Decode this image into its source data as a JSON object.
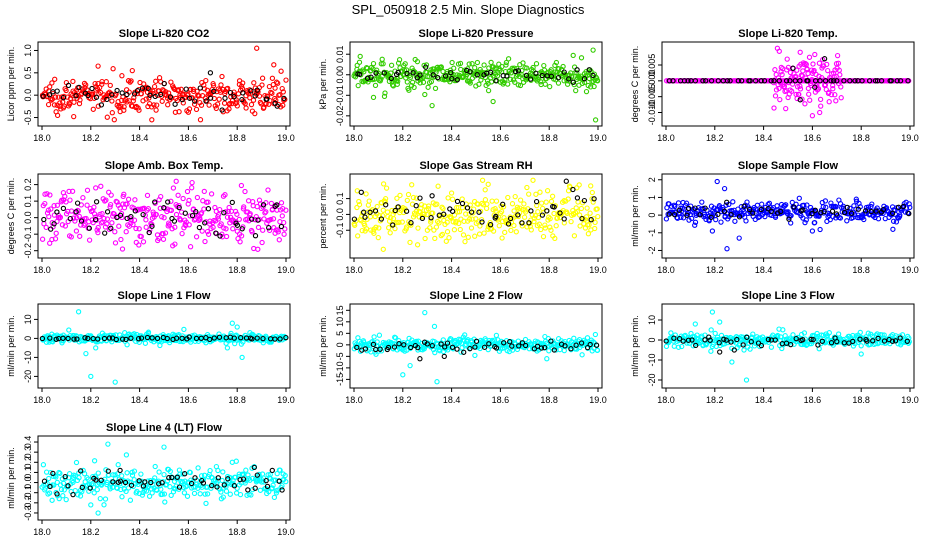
{
  "figure": {
    "title": "SPL_050918  2.5 Min. Slope Diagnostics"
  },
  "colors": {
    "red": "#ff0000",
    "green": "#33cc00",
    "magenta": "#ff00ff",
    "yellow": "#ffff00",
    "blue": "#0000ff",
    "cyan": "#00ffff",
    "black": "#000000"
  },
  "chart_data": [
    {
      "type": "scatter",
      "title": "Slope Li-820 CO2",
      "ylabel": "Licor ppm per min.",
      "xlabel": "",
      "xlim": [
        18.0,
        19.0
      ],
      "ylim": [
        -0.6,
        1.1
      ],
      "xticks": [
        "18.0",
        "18.2",
        "18.4",
        "18.6",
        "18.8",
        "19.0"
      ],
      "yticks": [
        "-0.5",
        "0.0",
        "0.5",
        "1.0"
      ],
      "series": [
        {
          "color": "red",
          "spread": 0.18,
          "offset": 0.0,
          "n": 330,
          "outliers": [
            [
              18.23,
              0.65
            ],
            [
              18.37,
              0.55
            ],
            [
              18.88,
              1.05
            ],
            [
              18.45,
              -0.55
            ],
            [
              18.13,
              -0.48
            ],
            [
              18.95,
              0.68
            ]
          ]
        },
        {
          "color": "black",
          "spread": 0.12,
          "offset": 0.0,
          "n": 50,
          "outliers": [
            [
              18.69,
              0.5
            ]
          ]
        }
      ]
    },
    {
      "type": "scatter",
      "title": "Slope Li-820 Pressure",
      "ylabel": "kPa per min.",
      "xlabel": "",
      "xlim": [
        18.0,
        19.0
      ],
      "ylim": [
        -0.023,
        0.014
      ],
      "xticks": [
        "18.0",
        "18.2",
        "18.4",
        "18.6",
        "18.8",
        "19.0"
      ],
      "yticks": [
        "-0.02",
        "-0.01",
        "0.00",
        "0.01"
      ],
      "series": [
        {
          "color": "green",
          "spread": 0.0035,
          "offset": 0.0,
          "n": 380,
          "outliers": [
            [
              18.32,
              -0.015
            ],
            [
              18.08,
              -0.011
            ],
            [
              18.99,
              -0.022
            ],
            [
              18.98,
              0.012
            ],
            [
              18.57,
              -0.013
            ]
          ]
        },
        {
          "color": "black",
          "spread": 0.0015,
          "offset": 0.0,
          "n": 45,
          "outliers": []
        }
      ]
    },
    {
      "type": "scatter",
      "title": "Slope Li-820 Temp.",
      "ylabel": "degrees C per min.",
      "xlabel": "",
      "xlim": [
        18.0,
        19.0
      ],
      "ylim": [
        -0.013,
        0.011
      ],
      "xticks": [
        "18.0",
        "18.2",
        "18.4",
        "18.6",
        "18.8",
        "19.0"
      ],
      "yticks": [
        "-0.010",
        "-0.005",
        "0.000",
        "0.005"
      ],
      "series": [
        {
          "color": "magenta",
          "spread": 0.0,
          "offset": 0.0,
          "n": 180,
          "outliers": []
        },
        {
          "color": "magenta",
          "spread": 0.004,
          "offset": 0.0,
          "n": 130,
          "xrange": [
            18.44,
            18.72
          ],
          "outliers": [
            [
              18.55,
              0.009
            ],
            [
              18.6,
              -0.011
            ]
          ]
        },
        {
          "color": "black",
          "spread": 0.0,
          "offset": 0.0,
          "n": 50,
          "outliers": [
            [
              18.52,
              0.004
            ],
            [
              18.55,
              -0.006
            ],
            [
              18.65,
              0.007
            ],
            [
              18.61,
              -0.002
            ]
          ]
        }
      ]
    },
    {
      "type": "scatter",
      "title": "Slope Amb. Box Temp.",
      "ylabel": "degrees C per min.",
      "xlabel": "",
      "xlim": [
        18.0,
        19.0
      ],
      "ylim": [
        -0.22,
        0.24
      ],
      "xticks": [
        "18.0",
        "18.2",
        "18.4",
        "18.6",
        "18.8",
        "19.0"
      ],
      "yticks": [
        "-0.2",
        "-0.1",
        "0.0",
        "0.1",
        "0.2"
      ],
      "series": [
        {
          "color": "magenta",
          "spread": 0.08,
          "offset": 0.0,
          "n": 340,
          "outliers": [
            [
              18.55,
              0.22
            ],
            [
              18.22,
              0.18
            ],
            [
              18.33,
              -0.19
            ]
          ]
        },
        {
          "color": "black",
          "spread": 0.06,
          "offset": 0.0,
          "n": 50,
          "outliers": []
        }
      ]
    },
    {
      "type": "scatter",
      "title": "Slope Gas Stream RH",
      "ylabel": "percent per min.",
      "xlabel": "",
      "xlim": [
        18.0,
        19.0
      ],
      "ylim": [
        -0.25,
        0.23
      ],
      "xticks": [
        "18.0",
        "18.2",
        "18.4",
        "18.6",
        "18.8",
        "19.0"
      ],
      "yticks": [
        "-0.1",
        "0.0",
        "0.1"
      ],
      "series": [
        {
          "color": "yellow",
          "spread": 0.08,
          "offset": 0.0,
          "n": 340,
          "outliers": [
            [
              18.12,
              -0.22
            ],
            [
              18.55,
              0.19
            ],
            [
              18.97,
              0.18
            ]
          ]
        },
        {
          "color": "black",
          "spread": 0.06,
          "offset": 0.0,
          "n": 50,
          "outliers": [
            [
              18.87,
              0.21
            ],
            [
              18.03,
              0.14
            ]
          ]
        }
      ]
    },
    {
      "type": "scatter",
      "title": "Slope Sample Flow",
      "ylabel": "ml/min per min.",
      "xlabel": "",
      "xlim": [
        18.0,
        19.0
      ],
      "ylim": [
        -2.2,
        2.1
      ],
      "xticks": [
        "18.0",
        "18.2",
        "18.4",
        "18.6",
        "18.8",
        "19.0"
      ],
      "yticks": [
        "-2",
        "-1",
        "0",
        "1",
        "2"
      ],
      "series": [
        {
          "color": "blue",
          "spread": 0.28,
          "offset": 0.2,
          "n": 330,
          "outliers": [
            [
              18.21,
              1.9
            ],
            [
              18.24,
              1.5
            ],
            [
              18.3,
              -1.3
            ],
            [
              18.19,
              -0.9
            ],
            [
              18.25,
              -1.9
            ],
            [
              18.6,
              -0.9
            ],
            [
              18.78,
              0.9
            ],
            [
              18.93,
              -0.8
            ]
          ]
        },
        {
          "color": "black",
          "spread": 0.2,
          "offset": 0.2,
          "n": 45,
          "outliers": []
        }
      ]
    },
    {
      "type": "scatter",
      "title": "Slope Line 1 Flow",
      "ylabel": "ml/min per min.",
      "xlabel": "",
      "xlim": [
        18.0,
        19.0
      ],
      "ylim": [
        -24,
        16
      ],
      "xticks": [
        "18.0",
        "18.2",
        "18.4",
        "18.6",
        "18.8",
        "19.0"
      ],
      "yticks": [
        "-20",
        "-10",
        "0",
        "10"
      ],
      "series": [
        {
          "color": "cyan",
          "spread": 1.2,
          "offset": 0.0,
          "n": 330,
          "outliers": [
            [
              18.15,
              14
            ],
            [
              18.18,
              -8
            ],
            [
              18.2,
              -20
            ],
            [
              18.22,
              -5
            ],
            [
              18.3,
              -23
            ],
            [
              18.78,
              8
            ],
            [
              18.82,
              -10
            ],
            [
              18.8,
              6
            ],
            [
              18.76,
              -5
            ]
          ]
        },
        {
          "color": "black",
          "spread": 0.3,
          "offset": 0.0,
          "n": 50,
          "outliers": []
        }
      ]
    },
    {
      "type": "scatter",
      "title": "Slope Line 2 Flow",
      "ylabel": "ml/min per min.",
      "xlabel": "",
      "xlim": [
        18.0,
        19.0
      ],
      "ylim": [
        -17,
        16
      ],
      "xticks": [
        "18.0",
        "18.2",
        "18.4",
        "18.6",
        "18.8",
        "19.0"
      ],
      "yticks": [
        "-15",
        "-10",
        "-5",
        "0",
        "5",
        "10",
        "15"
      ],
      "series": [
        {
          "color": "cyan",
          "spread": 1.5,
          "offset": 0.0,
          "n": 330,
          "outliers": [
            [
              18.29,
              14
            ],
            [
              18.23,
              -9
            ],
            [
              18.2,
              -13
            ],
            [
              18.34,
              -16
            ],
            [
              18.33,
              8
            ],
            [
              18.79,
              -6
            ]
          ]
        },
        {
          "color": "black",
          "spread": 1.0,
          "offset": -0.5,
          "n": 50,
          "outliers": [
            [
              18.27,
              -6
            ],
            [
              18.37,
              -5
            ]
          ]
        }
      ]
    },
    {
      "type": "scatter",
      "title": "Slope Line 3 Flow",
      "ylabel": "ml/min per min.",
      "xlabel": "",
      "xlim": [
        18.0,
        19.0
      ],
      "ylim": [
        -22,
        16
      ],
      "xticks": [
        "18.0",
        "18.2",
        "18.4",
        "18.6",
        "18.8",
        "19.0"
      ],
      "yticks": [
        "-20",
        "-10",
        "0",
        "10"
      ],
      "series": [
        {
          "color": "cyan",
          "spread": 1.8,
          "offset": 0.0,
          "n": 330,
          "outliers": [
            [
              18.19,
              14
            ],
            [
              18.22,
              9
            ],
            [
              18.27,
              -11
            ],
            [
              18.33,
              -20
            ],
            [
              18.12,
              8
            ],
            [
              18.8,
              -7
            ]
          ]
        },
        {
          "color": "black",
          "spread": 1.2,
          "offset": -0.5,
          "n": 50,
          "outliers": [
            [
              18.22,
              -6
            ],
            [
              18.28,
              -5
            ]
          ]
        }
      ]
    },
    {
      "type": "scatter",
      "title": "Slope Line 4 (LT) Flow",
      "ylabel": "ml/min per min.",
      "xlabel": "",
      "xlim": [
        18.0,
        19.0
      ],
      "ylim": [
        -0.33,
        0.42
      ],
      "xticks": [
        "18.0",
        "18.2",
        "18.4",
        "18.6",
        "18.8",
        "19.0"
      ],
      "yticks": [
        "-0.3",
        "-0.2",
        "-0.1",
        "0.0",
        "0.1",
        "0.2",
        "0.3",
        "0.4"
      ],
      "series": [
        {
          "color": "cyan",
          "spread": 0.08,
          "offset": 0.0,
          "n": 330,
          "outliers": [
            [
              18.27,
              0.38
            ],
            [
              18.5,
              0.35
            ],
            [
              18.23,
              -0.3
            ],
            [
              18.2,
              -0.22
            ],
            [
              18.78,
              0.2
            ]
          ]
        },
        {
          "color": "black",
          "spread": 0.05,
          "offset": 0.0,
          "n": 50,
          "outliers": [
            [
              18.87,
              0.15
            ],
            [
              18.32,
              0.12
            ]
          ]
        }
      ]
    }
  ]
}
